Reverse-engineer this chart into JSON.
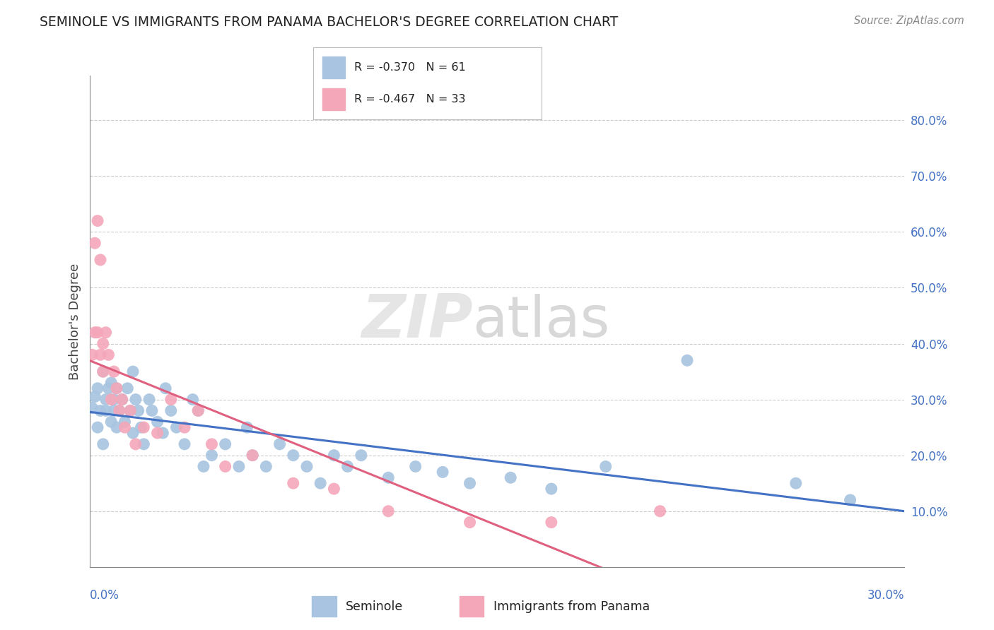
{
  "title": "SEMINOLE VS IMMIGRANTS FROM PANAMA BACHELOR'S DEGREE CORRELATION CHART",
  "source": "Source: ZipAtlas.com",
  "ylabel": "Bachelor's Degree",
  "xmin": 0.0,
  "xmax": 0.3,
  "ymin": 0.0,
  "ymax": 0.88,
  "blue_scatter_color": "#a8c4e0",
  "pink_scatter_color": "#f4a7b9",
  "blue_line_color": "#4472c4",
  "pink_line_color": "#e06080",
  "right_tick_color": "#4472c4",
  "grid_color": "#cccccc",
  "seminole_x": [
    0.001,
    0.002,
    0.003,
    0.003,
    0.004,
    0.005,
    0.005,
    0.006,
    0.006,
    0.007,
    0.008,
    0.008,
    0.009,
    0.009,
    0.01,
    0.01,
    0.011,
    0.012,
    0.013,
    0.014,
    0.015,
    0.016,
    0.016,
    0.017,
    0.018,
    0.019,
    0.02,
    0.022,
    0.023,
    0.025,
    0.027,
    0.028,
    0.03,
    0.032,
    0.035,
    0.038,
    0.04,
    0.042,
    0.045,
    0.05,
    0.055,
    0.058,
    0.06,
    0.065,
    0.07,
    0.075,
    0.08,
    0.085,
    0.09,
    0.095,
    0.1,
    0.11,
    0.12,
    0.13,
    0.14,
    0.155,
    0.17,
    0.19,
    0.22,
    0.26,
    0.28
  ],
  "seminole_y": [
    0.285,
    0.305,
    0.32,
    0.25,
    0.28,
    0.35,
    0.22,
    0.3,
    0.28,
    0.32,
    0.26,
    0.33,
    0.28,
    0.3,
    0.25,
    0.32,
    0.28,
    0.3,
    0.26,
    0.32,
    0.28,
    0.35,
    0.24,
    0.3,
    0.28,
    0.25,
    0.22,
    0.3,
    0.28,
    0.26,
    0.24,
    0.32,
    0.28,
    0.25,
    0.22,
    0.3,
    0.28,
    0.18,
    0.2,
    0.22,
    0.18,
    0.25,
    0.2,
    0.18,
    0.22,
    0.2,
    0.18,
    0.15,
    0.2,
    0.18,
    0.2,
    0.16,
    0.18,
    0.17,
    0.15,
    0.16,
    0.14,
    0.18,
    0.37,
    0.15,
    0.12
  ],
  "panama_x": [
    0.001,
    0.002,
    0.002,
    0.003,
    0.003,
    0.004,
    0.004,
    0.005,
    0.005,
    0.006,
    0.007,
    0.008,
    0.009,
    0.01,
    0.011,
    0.012,
    0.013,
    0.015,
    0.017,
    0.02,
    0.025,
    0.03,
    0.035,
    0.04,
    0.045,
    0.05,
    0.06,
    0.075,
    0.09,
    0.11,
    0.14,
    0.17,
    0.21
  ],
  "panama_y": [
    0.38,
    0.42,
    0.58,
    0.62,
    0.42,
    0.55,
    0.38,
    0.35,
    0.4,
    0.42,
    0.38,
    0.3,
    0.35,
    0.32,
    0.28,
    0.3,
    0.25,
    0.28,
    0.22,
    0.25,
    0.24,
    0.3,
    0.25,
    0.28,
    0.22,
    0.18,
    0.2,
    0.15,
    0.14,
    0.1,
    0.08,
    0.08,
    0.1
  ]
}
